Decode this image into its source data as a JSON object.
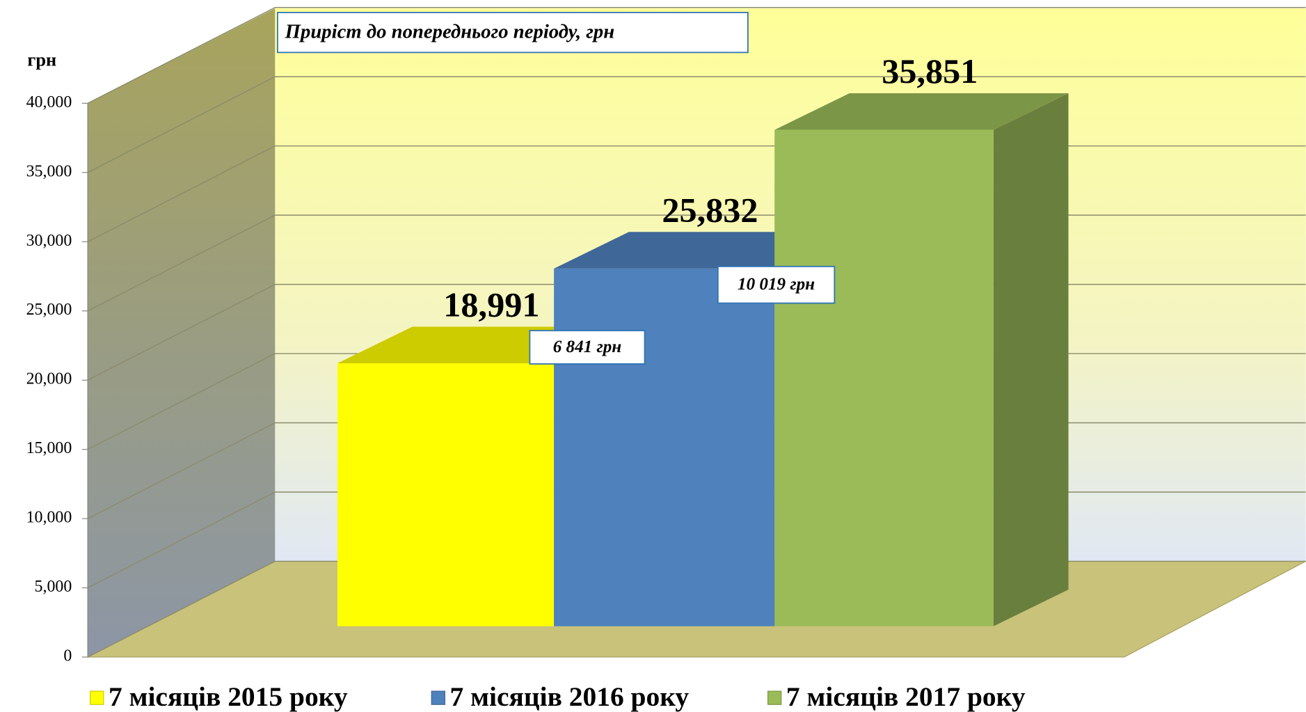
{
  "chart_data": {
    "type": "bar3d",
    "y_label": "грн",
    "annotations": [
      "Приріст до попереднього періоду, грн",
      "6 841 грн",
      "10 019 грн"
    ],
    "categories": [
      null
    ],
    "series": [
      {
        "name": "7 місяців 2015 року",
        "color": "#ffff00",
        "values": [
          18991
        ],
        "value_labels": [
          "18,991"
        ]
      },
      {
        "name": "7 місяців 2016 року",
        "color": "#4f81bd",
        "values": [
          25832
        ],
        "value_labels": [
          "25,832"
        ]
      },
      {
        "name": "7 місяців 2017 року",
        "color": "#9bbb59",
        "values": [
          35851
        ],
        "value_labels": [
          "35,851"
        ]
      }
    ],
    "ylim": [
      0,
      40000
    ],
    "yticks": [
      0,
      {
        "value": 5000,
        "label": "5,000"
      },
      {
        "value": 10000,
        "label": "10,000"
      },
      {
        "value": 15000,
        "label": "15,000"
      },
      {
        "value": 20000,
        "label": "20,000"
      },
      {
        "value": 25000,
        "label": "25,000"
      },
      {
        "value": 30000,
        "label": "30,000"
      },
      {
        "value": 35000,
        "label": "35,000"
      },
      {
        "value": 40000,
        "label": "40,000"
      }
    ],
    "grid": true
  }
}
